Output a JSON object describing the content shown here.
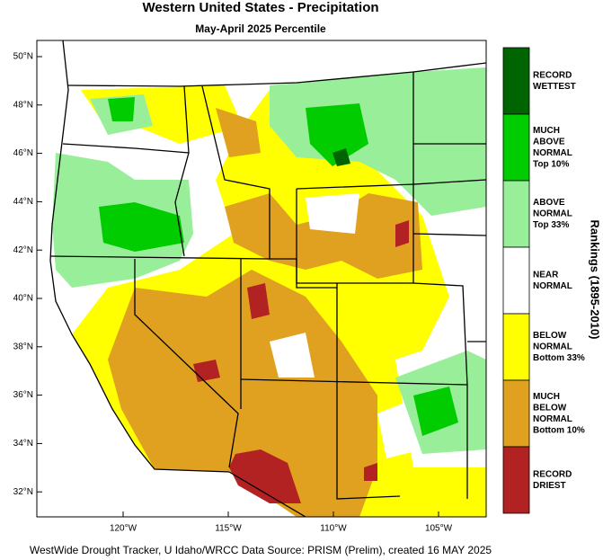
{
  "header": {
    "title": "Western United States - Precipitation",
    "subtitle": "May-April 2025 Percentile"
  },
  "map": {
    "lat_labels": [
      "50°N",
      "48°N",
      "46°N",
      "44°N",
      "42°N",
      "40°N",
      "38°N",
      "36°N",
      "34°N",
      "32°N"
    ],
    "lon_labels": [
      "120°W",
      "115°W",
      "110°W",
      "105°W"
    ]
  },
  "legend": {
    "title": "Rankings (1895-2010)",
    "items": [
      {
        "label": [
          "RECORD",
          "WETTEST"
        ],
        "color": "#006400"
      },
      {
        "label": [
          "MUCH",
          "ABOVE",
          "NORMAL",
          "Top 10%"
        ],
        "color": "#00cc00"
      },
      {
        "label": [
          "ABOVE",
          "NORMAL",
          "Top 33%"
        ],
        "color": "#99ee99"
      },
      {
        "label": [
          "NEAR",
          "NORMAL"
        ],
        "color": "#ffffff"
      },
      {
        "label": [
          "BELOW",
          "NORMAL",
          "Bottom 33%"
        ],
        "color": "#ffff00"
      },
      {
        "label": [
          "MUCH",
          "BELOW",
          "NORMAL",
          "Bottom 10%"
        ],
        "color": "#e0a020"
      },
      {
        "label": [
          "RECORD",
          "DRIEST"
        ],
        "color": "#b22222"
      }
    ]
  },
  "footer": "WestWide Drought Tracker, U Idaho/WRCC Data Source: PRISM (Prelim), created 16 MAY 2025"
}
